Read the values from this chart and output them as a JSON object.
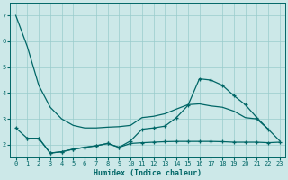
{
  "xlabel": "Humidex (Indice chaleur)",
  "background_color": "#cce8e8",
  "grid_color": "#99cccc",
  "line_color": "#006666",
  "xlim": [
    -0.5,
    23.5
  ],
  "ylim": [
    1.5,
    7.5
  ],
  "xticks": [
    0,
    1,
    2,
    3,
    4,
    5,
    6,
    7,
    8,
    9,
    10,
    11,
    12,
    13,
    14,
    15,
    16,
    17,
    18,
    19,
    20,
    21,
    22,
    23
  ],
  "yticks": [
    2,
    3,
    4,
    5,
    6,
    7
  ],
  "x_all": [
    0,
    1,
    2,
    3,
    4,
    5,
    6,
    7,
    8,
    9,
    10,
    11,
    12,
    13,
    14,
    15,
    16,
    17,
    18,
    19,
    20,
    21,
    22,
    23
  ],
  "line1_y": [
    7.0,
    5.8,
    4.3,
    3.45,
    3.0,
    2.75,
    2.65,
    2.65,
    2.68,
    2.7,
    2.75,
    3.05,
    3.1,
    3.2,
    3.38,
    3.55,
    3.58,
    3.5,
    3.45,
    3.3,
    3.05,
    3.0,
    2.6,
    2.15
  ],
  "line2_x": [
    1,
    2,
    3,
    4,
    5,
    6,
    7,
    8,
    9,
    10,
    11,
    12,
    13,
    14,
    15,
    16,
    17,
    18,
    19,
    20,
    21,
    22
  ],
  "line2_y": [
    2.25,
    2.25,
    1.68,
    1.73,
    1.83,
    1.9,
    1.96,
    2.05,
    1.9,
    2.15,
    2.6,
    2.65,
    2.72,
    3.05,
    3.52,
    4.55,
    4.5,
    4.3,
    3.9,
    3.55,
    3.05,
    2.6
  ],
  "line3_x": [
    0,
    1,
    2,
    3,
    4,
    5,
    6,
    7,
    8,
    9,
    10,
    11,
    12,
    13,
    14,
    15,
    16,
    17,
    18,
    19,
    20,
    21,
    22,
    23
  ],
  "line3_y": [
    2.65,
    2.25,
    2.25,
    1.68,
    1.73,
    1.83,
    1.9,
    1.96,
    2.05,
    1.9,
    2.05,
    2.08,
    2.1,
    2.12,
    2.13,
    2.13,
    2.13,
    2.13,
    2.12,
    2.1,
    2.1,
    2.1,
    2.08,
    2.1
  ]
}
